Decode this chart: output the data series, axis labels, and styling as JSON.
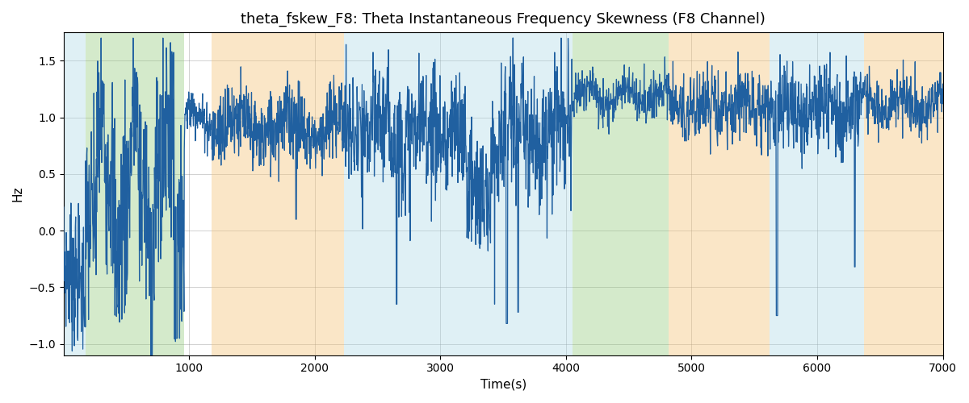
{
  "title": "theta_fskew_F8: Theta Instantaneous Frequency Skewness (F8 Channel)",
  "xlabel": "Time(s)",
  "ylabel": "Hz",
  "xlim": [
    0,
    7000
  ],
  "ylim": [
    -1.1,
    1.75
  ],
  "line_color": "#2060a0",
  "line_width": 0.9,
  "background_color": "#ffffff",
  "bands": [
    {
      "xmin": 0,
      "xmax": 175,
      "color": "#add8e6",
      "alpha": 0.38
    },
    {
      "xmin": 175,
      "xmax": 960,
      "color": "#90c878",
      "alpha": 0.38
    },
    {
      "xmin": 1180,
      "xmax": 2230,
      "color": "#f5c47a",
      "alpha": 0.42
    },
    {
      "xmin": 2230,
      "xmax": 4050,
      "color": "#add8e6",
      "alpha": 0.38
    },
    {
      "xmin": 4050,
      "xmax": 4820,
      "color": "#90c878",
      "alpha": 0.38
    },
    {
      "xmin": 4820,
      "xmax": 5620,
      "color": "#f5c47a",
      "alpha": 0.42
    },
    {
      "xmin": 5620,
      "xmax": 6370,
      "color": "#add8e6",
      "alpha": 0.38
    },
    {
      "xmin": 6370,
      "xmax": 7000,
      "color": "#f5c47a",
      "alpha": 0.42
    }
  ],
  "yticks": [
    -1.0,
    -0.5,
    0.0,
    0.5,
    1.0,
    1.5
  ],
  "xticks": [
    1000,
    2000,
    3000,
    4000,
    5000,
    6000,
    7000
  ],
  "title_fontsize": 13,
  "n_points": 2800,
  "seed": 7
}
